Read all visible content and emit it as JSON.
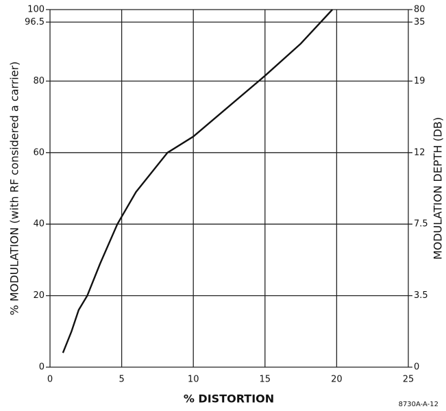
{
  "chart_data": {
    "type": "line",
    "xlabel": "% DISTORTION",
    "ylabel": "% MODULATION (with RF considered a carrier)",
    "y2label": "MODULATION DEPTH (DB)",
    "annotation": "8730A-A-12",
    "x": [
      0.9,
      1.5,
      2,
      2.6,
      3.5,
      4.7,
      6,
      7.2,
      8.2,
      10,
      12.5,
      15,
      17.5,
      19.7
    ],
    "values": [
      4,
      10,
      16,
      20,
      29,
      40,
      49,
      55,
      60,
      64.5,
      73,
      81.5,
      90.5,
      100
    ],
    "color": "#111111",
    "xlim": [
      0,
      25
    ],
    "xticks": [
      0,
      5,
      10,
      15,
      20,
      25
    ],
    "ylim": [
      0,
      100
    ],
    "yticks": [
      0,
      20,
      40,
      60,
      80,
      96.5,
      100
    ],
    "y2ticks": [
      0,
      3.5,
      7.5,
      12,
      19,
      35,
      80
    ],
    "grid": true
  }
}
